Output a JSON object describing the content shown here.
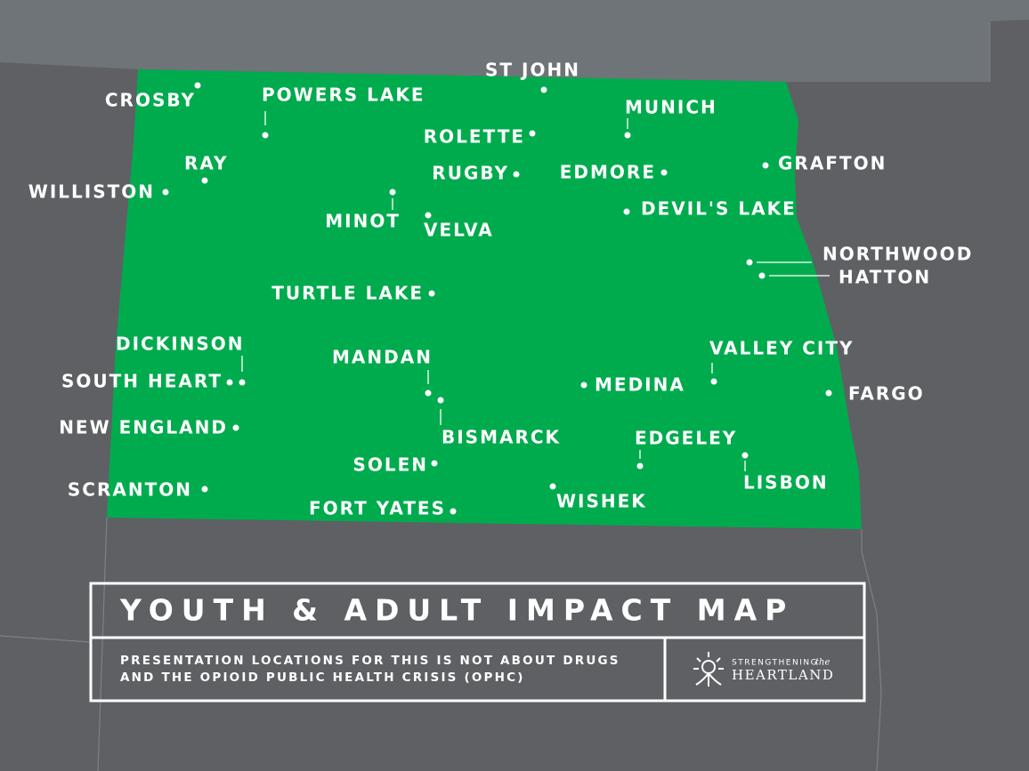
{
  "map": {
    "locations": [
      "CROSBY",
      "POWERS LAKE",
      "ST JOHN",
      "MUNICH",
      "ROLETTE",
      "RAY",
      "WILLISTON",
      "RUGBY",
      "EDMORE",
      "GRAFTON",
      "MINOT",
      "VELVA",
      "DEVIL'S LAKE",
      "NORTHWOOD",
      "HATTON",
      "TURTLE LAKE",
      "DICKINSON",
      "SOUTH HEART",
      "MANDAN",
      "BISMARCK",
      "MEDINA",
      "VALLEY CITY",
      "FARGO",
      "NEW ENGLAND",
      "EDGELEY",
      "LISBON",
      "SOLEN",
      "SCRANTON",
      "WISHEK",
      "FORT YATES"
    ]
  },
  "legend": {
    "title": "YOUTH & ADULT IMPACT MAP",
    "subtitle": [
      "PRESENTATION LOCATIONS FOR THIS IS NOT ABOUT DRUGS",
      "AND THE OPIOID PUBLIC HEALTH CRISIS (OPHC)"
    ],
    "logo": {
      "top": "STRENGTHENING",
      "the": "the",
      "name": "HEARTLAND"
    }
  }
}
